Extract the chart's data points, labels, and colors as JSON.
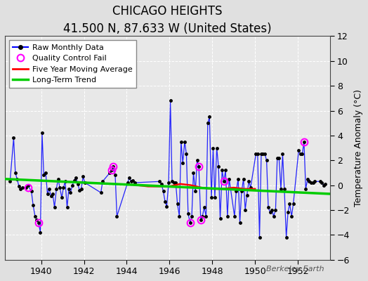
{
  "title": "CHICAGO HEIGHTS",
  "subtitle": "41.500 N, 87.633 W (United States)",
  "ylabel": "Temperature Anomaly (°C)",
  "watermark": "Berkeley Earth",
  "xlim": [
    1938.3,
    1953.5
  ],
  "ylim": [
    -6,
    12
  ],
  "yticks": [
    -6,
    -4,
    -2,
    0,
    2,
    4,
    6,
    8,
    10,
    12
  ],
  "xticks": [
    1940,
    1942,
    1944,
    1946,
    1948,
    1950,
    1952
  ],
  "bg_color": "#e0e0e0",
  "plot_bg_color": "#e8e8e8",
  "raw_data": [
    [
      1938.54,
      0.3
    ],
    [
      1938.71,
      3.8
    ],
    [
      1938.79,
      1.0
    ],
    [
      1938.87,
      0.5
    ],
    [
      1938.96,
      -0.1
    ],
    [
      1939.04,
      -0.3
    ],
    [
      1939.12,
      -0.2
    ],
    [
      1939.29,
      -0.2
    ],
    [
      1939.37,
      0.0
    ],
    [
      1939.54,
      -0.5
    ],
    [
      1939.62,
      -1.6
    ],
    [
      1939.71,
      -2.5
    ],
    [
      1939.79,
      -2.8
    ],
    [
      1939.87,
      -3.0
    ],
    [
      1939.96,
      -3.8
    ],
    [
      1940.04,
      4.2
    ],
    [
      1940.12,
      0.8
    ],
    [
      1940.21,
      1.0
    ],
    [
      1940.29,
      -0.7
    ],
    [
      1940.37,
      -0.3
    ],
    [
      1940.46,
      -0.9
    ],
    [
      1940.54,
      -0.7
    ],
    [
      1940.62,
      -1.8
    ],
    [
      1940.71,
      -0.3
    ],
    [
      1940.79,
      0.5
    ],
    [
      1940.87,
      -0.2
    ],
    [
      1940.96,
      -1.0
    ],
    [
      1941.04,
      -0.2
    ],
    [
      1941.12,
      0.3
    ],
    [
      1941.21,
      -1.8
    ],
    [
      1941.29,
      -0.3
    ],
    [
      1941.37,
      -0.6
    ],
    [
      1941.46,
      0.0
    ],
    [
      1941.54,
      0.4
    ],
    [
      1941.62,
      0.6
    ],
    [
      1941.71,
      0.1
    ],
    [
      1941.79,
      -0.4
    ],
    [
      1941.87,
      -0.3
    ],
    [
      1941.96,
      0.7
    ],
    [
      1942.04,
      0.2
    ],
    [
      1942.79,
      -0.6
    ],
    [
      1942.87,
      0.3
    ],
    [
      1943.21,
      1.0
    ],
    [
      1943.29,
      1.2
    ],
    [
      1943.37,
      1.5
    ],
    [
      1943.46,
      0.8
    ],
    [
      1943.54,
      -2.5
    ],
    [
      1944.04,
      0.2
    ],
    [
      1944.12,
      0.6
    ],
    [
      1944.21,
      0.3
    ],
    [
      1944.29,
      0.4
    ],
    [
      1944.37,
      0.2
    ],
    [
      1945.54,
      0.3
    ],
    [
      1945.62,
      0.1
    ],
    [
      1945.71,
      -0.5
    ],
    [
      1945.79,
      -1.3
    ],
    [
      1945.87,
      -1.7
    ],
    [
      1945.96,
      0.2
    ],
    [
      1946.04,
      6.8
    ],
    [
      1946.12,
      0.3
    ],
    [
      1946.21,
      0.2
    ],
    [
      1946.29,
      0.2
    ],
    [
      1946.37,
      -1.5
    ],
    [
      1946.46,
      -2.5
    ],
    [
      1946.54,
      3.5
    ],
    [
      1946.62,
      1.8
    ],
    [
      1946.71,
      3.5
    ],
    [
      1946.79,
      2.5
    ],
    [
      1946.87,
      -2.3
    ],
    [
      1946.96,
      -3.0
    ],
    [
      1947.04,
      -2.5
    ],
    [
      1947.12,
      1.0
    ],
    [
      1947.21,
      -0.5
    ],
    [
      1947.29,
      2.0
    ],
    [
      1947.37,
      1.5
    ],
    [
      1947.46,
      -2.8
    ],
    [
      1947.54,
      -2.5
    ],
    [
      1947.62,
      -1.8
    ],
    [
      1947.71,
      -2.5
    ],
    [
      1947.79,
      5.0
    ],
    [
      1947.87,
      5.5
    ],
    [
      1947.96,
      -1.0
    ],
    [
      1948.04,
      3.0
    ],
    [
      1948.12,
      -1.0
    ],
    [
      1948.21,
      3.0
    ],
    [
      1948.29,
      1.5
    ],
    [
      1948.37,
      -2.7
    ],
    [
      1948.46,
      1.2
    ],
    [
      1948.54,
      0.3
    ],
    [
      1948.62,
      1.2
    ],
    [
      1948.71,
      -2.5
    ],
    [
      1948.79,
      0.5
    ],
    [
      1949.04,
      -2.5
    ],
    [
      1949.12,
      -0.5
    ],
    [
      1949.21,
      0.5
    ],
    [
      1949.29,
      -3.0
    ],
    [
      1949.37,
      -0.5
    ],
    [
      1949.46,
      0.5
    ],
    [
      1949.54,
      -2.0
    ],
    [
      1949.62,
      -0.8
    ],
    [
      1949.71,
      0.3
    ],
    [
      1949.79,
      -0.2
    ],
    [
      1950.04,
      2.5
    ],
    [
      1950.12,
      2.5
    ],
    [
      1950.21,
      -4.2
    ],
    [
      1950.29,
      2.5
    ],
    [
      1950.37,
      2.5
    ],
    [
      1950.46,
      2.5
    ],
    [
      1950.54,
      2.0
    ],
    [
      1950.62,
      -1.8
    ],
    [
      1950.71,
      -2.2
    ],
    [
      1950.79,
      -2.0
    ],
    [
      1950.87,
      -2.5
    ],
    [
      1950.96,
      -2.0
    ],
    [
      1951.04,
      2.2
    ],
    [
      1951.12,
      2.2
    ],
    [
      1951.21,
      -0.3
    ],
    [
      1951.29,
      2.5
    ],
    [
      1951.37,
      -0.3
    ],
    [
      1951.46,
      -4.2
    ],
    [
      1951.54,
      -2.2
    ],
    [
      1951.62,
      -1.5
    ],
    [
      1951.71,
      -2.5
    ],
    [
      1951.79,
      -1.5
    ],
    [
      1952.04,
      2.8
    ],
    [
      1952.12,
      2.5
    ],
    [
      1952.21,
      2.5
    ],
    [
      1952.29,
      3.5
    ],
    [
      1952.37,
      -0.3
    ],
    [
      1952.46,
      0.5
    ],
    [
      1952.54,
      0.3
    ],
    [
      1952.62,
      0.2
    ],
    [
      1952.71,
      0.2
    ],
    [
      1952.79,
      0.3
    ],
    [
      1953.04,
      0.3
    ],
    [
      1953.12,
      0.2
    ],
    [
      1953.21,
      0.0
    ],
    [
      1953.29,
      0.1
    ]
  ],
  "qc_fail_points": [
    [
      1939.37,
      -0.2
    ],
    [
      1939.87,
      -3.0
    ],
    [
      1943.29,
      1.2
    ],
    [
      1943.37,
      1.5
    ],
    [
      1946.96,
      -3.0
    ],
    [
      1947.37,
      1.5
    ],
    [
      1947.46,
      -2.8
    ],
    [
      1948.54,
      0.3
    ],
    [
      1952.29,
      3.5
    ]
  ],
  "moving_avg": [
    [
      1944.5,
      0.0
    ],
    [
      1945.0,
      -0.1
    ],
    [
      1945.5,
      -0.1
    ],
    [
      1946.0,
      -0.1
    ],
    [
      1946.5,
      0.1
    ],
    [
      1947.0,
      0.0
    ],
    [
      1947.5,
      -0.2
    ],
    [
      1948.0,
      -0.3
    ],
    [
      1948.5,
      -0.3
    ],
    [
      1949.0,
      -0.2
    ],
    [
      1949.5,
      -0.3
    ],
    [
      1950.0,
      -0.3
    ]
  ],
  "trend_x": [
    1938.3,
    1953.5
  ],
  "trend_y": [
    0.5,
    -0.7
  ],
  "line_color": "#0000ff",
  "dot_color": "#000000",
  "qc_color": "#ff00ff",
  "moving_avg_color": "#ff0000",
  "trend_color": "#00cc00",
  "title_fontsize": 12,
  "subtitle_fontsize": 10,
  "tick_fontsize": 9,
  "ylabel_fontsize": 9
}
